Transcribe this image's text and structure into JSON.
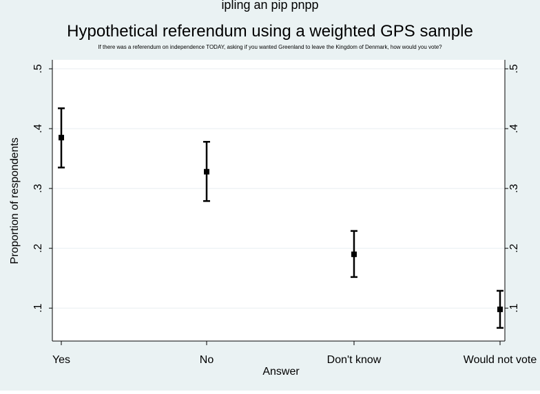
{
  "chart_data": {
    "type": "scatter",
    "title": "Hypothetical referendum using a weighted GPS sample",
    "subtitle": "If there was a referendum on independence TODAY, asking if you wanted Greenland to leave the Kingdom of Denmark, how would you vote?",
    "top_caption": "ipling an pip pnpp",
    "xlabel": "Answer",
    "ylabel": "Proportion of respondents",
    "categories": [
      "Yes",
      "No",
      "Don't know",
      "Would not vote"
    ],
    "values": [
      0.385,
      0.328,
      0.19,
      0.098
    ],
    "ci_upper": [
      0.434,
      0.378,
      0.229,
      0.129
    ],
    "ci_lower": [
      0.335,
      0.279,
      0.152,
      0.067
    ],
    "ylim": [
      0.045,
      0.515
    ],
    "yticks": [
      0.1,
      0.2,
      0.3,
      0.4,
      0.5
    ],
    "ytick_labels": [
      ".1",
      ".2",
      ".3",
      ".4",
      ".5"
    ],
    "grid": true,
    "right_axis": true,
    "colors": {
      "outer_background": "#eaf2f3",
      "plot_background": "#ffffff",
      "marker": "#000000",
      "gridline": "#e8eef0",
      "axis": "#000000",
      "text": "#000000"
    }
  }
}
